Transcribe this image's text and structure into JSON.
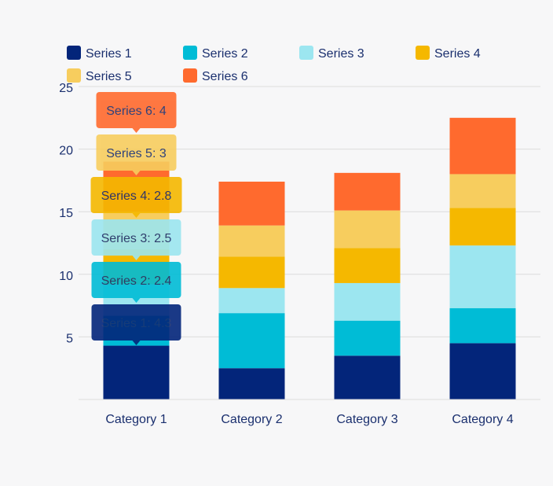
{
  "chart_data": {
    "type": "bar",
    "stacked": true,
    "categories": [
      "Category 1",
      "Category 2",
      "Category 3",
      "Category 4"
    ],
    "ylim": [
      0,
      25
    ],
    "yticks": [
      5,
      10,
      15,
      20,
      25
    ],
    "grid": true,
    "legend_position": "top",
    "title": "",
    "xlabel": "",
    "ylabel": "",
    "series": [
      {
        "name": "Series 1",
        "color": "#03257a",
        "values": [
          4.3,
          2.5,
          3.5,
          4.5
        ]
      },
      {
        "name": "Series 2",
        "color": "#00bcd6",
        "values": [
          2.4,
          4.4,
          2.8,
          2.8
        ]
      },
      {
        "name": "Series 3",
        "color": "#9ce6f0",
        "values": [
          2.5,
          2.0,
          3.0,
          5.0
        ]
      },
      {
        "name": "Series 4",
        "color": "#f5b800",
        "values": [
          2.8,
          2.5,
          2.8,
          3.0
        ]
      },
      {
        "name": "Series 5",
        "color": "#f7cd5e",
        "values": [
          3.0,
          2.5,
          3.0,
          2.7
        ]
      },
      {
        "name": "Series 6",
        "color": "#ff6a2e",
        "values": [
          4.0,
          3.5,
          3.0,
          4.5
        ]
      }
    ],
    "tooltips": [
      {
        "text": "Series 6: 4",
        "series": 5
      },
      {
        "text": "Series 5: 3",
        "series": 4
      },
      {
        "text": "Series 4: 2.8",
        "series": 3
      },
      {
        "text": "Series 3: 2.5",
        "series": 2
      },
      {
        "text": "Series 2: 2.4",
        "series": 1
      },
      {
        "text": "Series 1: 4.3",
        "series": 0
      }
    ],
    "tooltip_category": 0,
    "text_color": "#1a2f6e",
    "grid_color": "#dcdcdc"
  }
}
